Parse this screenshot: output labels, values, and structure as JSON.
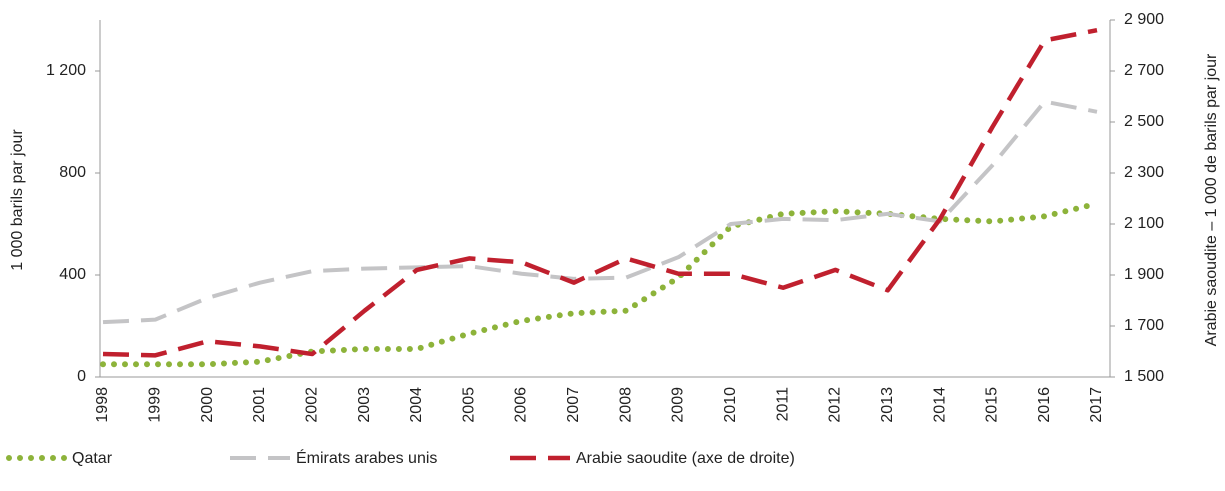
{
  "chart_data": {
    "type": "line",
    "y_label": "1 000 barils par jour",
    "y2_label": "Arabie saoudite – 1 000 de barils par jour",
    "categories": [
      "1998",
      "1999",
      "2000",
      "2001",
      "2002",
      "2003",
      "2004",
      "2005",
      "2006",
      "2007",
      "2008",
      "2009",
      "2010",
      "2011",
      "2012",
      "2013",
      "2014",
      "2015",
      "2016",
      "2017"
    ],
    "ylim": [
      0,
      1400
    ],
    "yticks": [
      0,
      400,
      800,
      {
        "value": 1200,
        "label": "1 200"
      }
    ],
    "y2lim": [
      1500,
      2900
    ],
    "y2ticks": [
      {
        "value": 1500,
        "label": "1 500"
      },
      {
        "value": 1700,
        "label": "1 700"
      },
      {
        "value": 1900,
        "label": "1 900"
      },
      {
        "value": 2100,
        "label": "2 100"
      },
      {
        "value": 2300,
        "label": "2 300"
      },
      {
        "value": 2500,
        "label": "2 500"
      },
      {
        "value": 2700,
        "label": "2 700"
      },
      {
        "value": 2900,
        "label": "2 900"
      }
    ],
    "legend": "bottom-left",
    "series": [
      {
        "name": "Qatar",
        "color": "#8db33a",
        "style": "dotted",
        "values": [
          50,
          50,
          50,
          60,
          100,
          110,
          110,
          170,
          220,
          250,
          260,
          390,
          590,
          640,
          650,
          640,
          620,
          610,
          630,
          680
        ]
      },
      {
        "name": "Émirats arabes unis",
        "color": "#c4c4c6",
        "style": "dashed",
        "values": [
          215,
          225,
          310,
          370,
          415,
          425,
          430,
          435,
          405,
          385,
          390,
          470,
          600,
          620,
          615,
          640,
          610,
          830,
          1080,
          1040
        ]
      },
      {
        "name": "Arabie saoudite (axe de droite)",
        "color": "#c0202e",
        "style": "dashed",
        "axis": "y2",
        "values": [
          1590,
          1585,
          1640,
          1620,
          1590,
          1760,
          1920,
          1965,
          1950,
          1870,
          1965,
          1905,
          1905,
          1850,
          1920,
          1840,
          2120,
          2480,
          2820,
          2860
        ]
      }
    ]
  }
}
